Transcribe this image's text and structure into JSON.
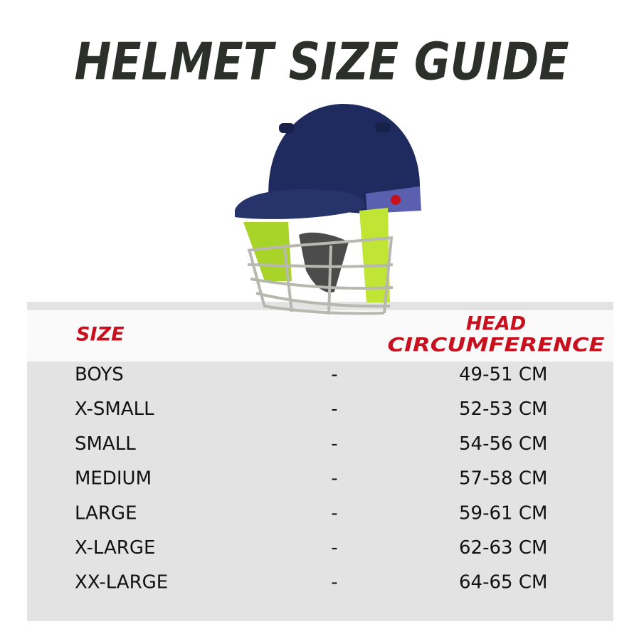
{
  "title": "HELMET SIZE GUIDE",
  "table": {
    "size_header": "SIZE",
    "circumference_header": [
      "HEAD",
      "CIRCUMFERENCE"
    ],
    "rows": [
      [
        "BOYS",
        "-",
        "49-51 CM"
      ],
      [
        "X-SMALL",
        "-",
        "52-53 CM"
      ],
      [
        "SMALL",
        "-",
        "54-56 CM"
      ],
      [
        "MEDIUM",
        "-",
        "57-58 CM"
      ],
      [
        "LARGE",
        "-",
        "59-61 CM"
      ],
      [
        "X-LARGE",
        "-",
        "62-63 CM"
      ],
      [
        "XX-LARGE",
        "-",
        "64-65 CM"
      ]
    ]
  }
}
